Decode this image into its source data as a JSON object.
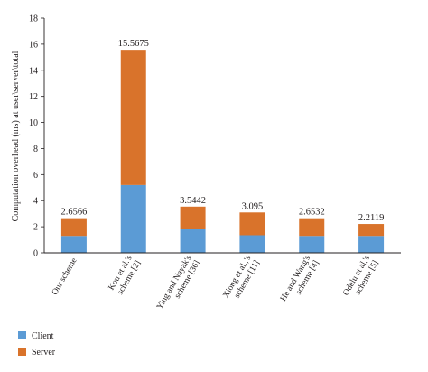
{
  "chart_data": {
    "type": "bar",
    "stacked": true,
    "ylabel": "Computation overhead (ms) at user\\server\\total",
    "xlabel": "",
    "ylim": [
      0,
      18
    ],
    "yticks": [
      0,
      2,
      4,
      6,
      8,
      10,
      12,
      14,
      16,
      18
    ],
    "grid": false,
    "legend_position": "bottom-left",
    "categories": [
      [
        "Our scheme"
      ],
      [
        "Kou et al.'s",
        "scheme [2]"
      ],
      [
        "Ying and Nayak's",
        "scheme [36]"
      ],
      [
        "Xiong et al.,'s",
        "scheme [11]"
      ],
      [
        "He and Wang's",
        "scheme [4]"
      ],
      [
        "Odelu et al.'s",
        "scheme [5]"
      ]
    ],
    "series": [
      {
        "name": "Client",
        "color": "#5b9bd5",
        "values": [
          1.3,
          5.2,
          1.8,
          1.35,
          1.3,
          1.3
        ]
      },
      {
        "name": "Server",
        "color": "#d9732b",
        "values": [
          1.3566,
          10.3675,
          1.7442,
          1.745,
          1.3532,
          0.9119
        ]
      }
    ],
    "totals": [
      "2.6566",
      "15.5675",
      "3.5442",
      "3.095",
      "2.6532",
      "2.2119"
    ]
  }
}
